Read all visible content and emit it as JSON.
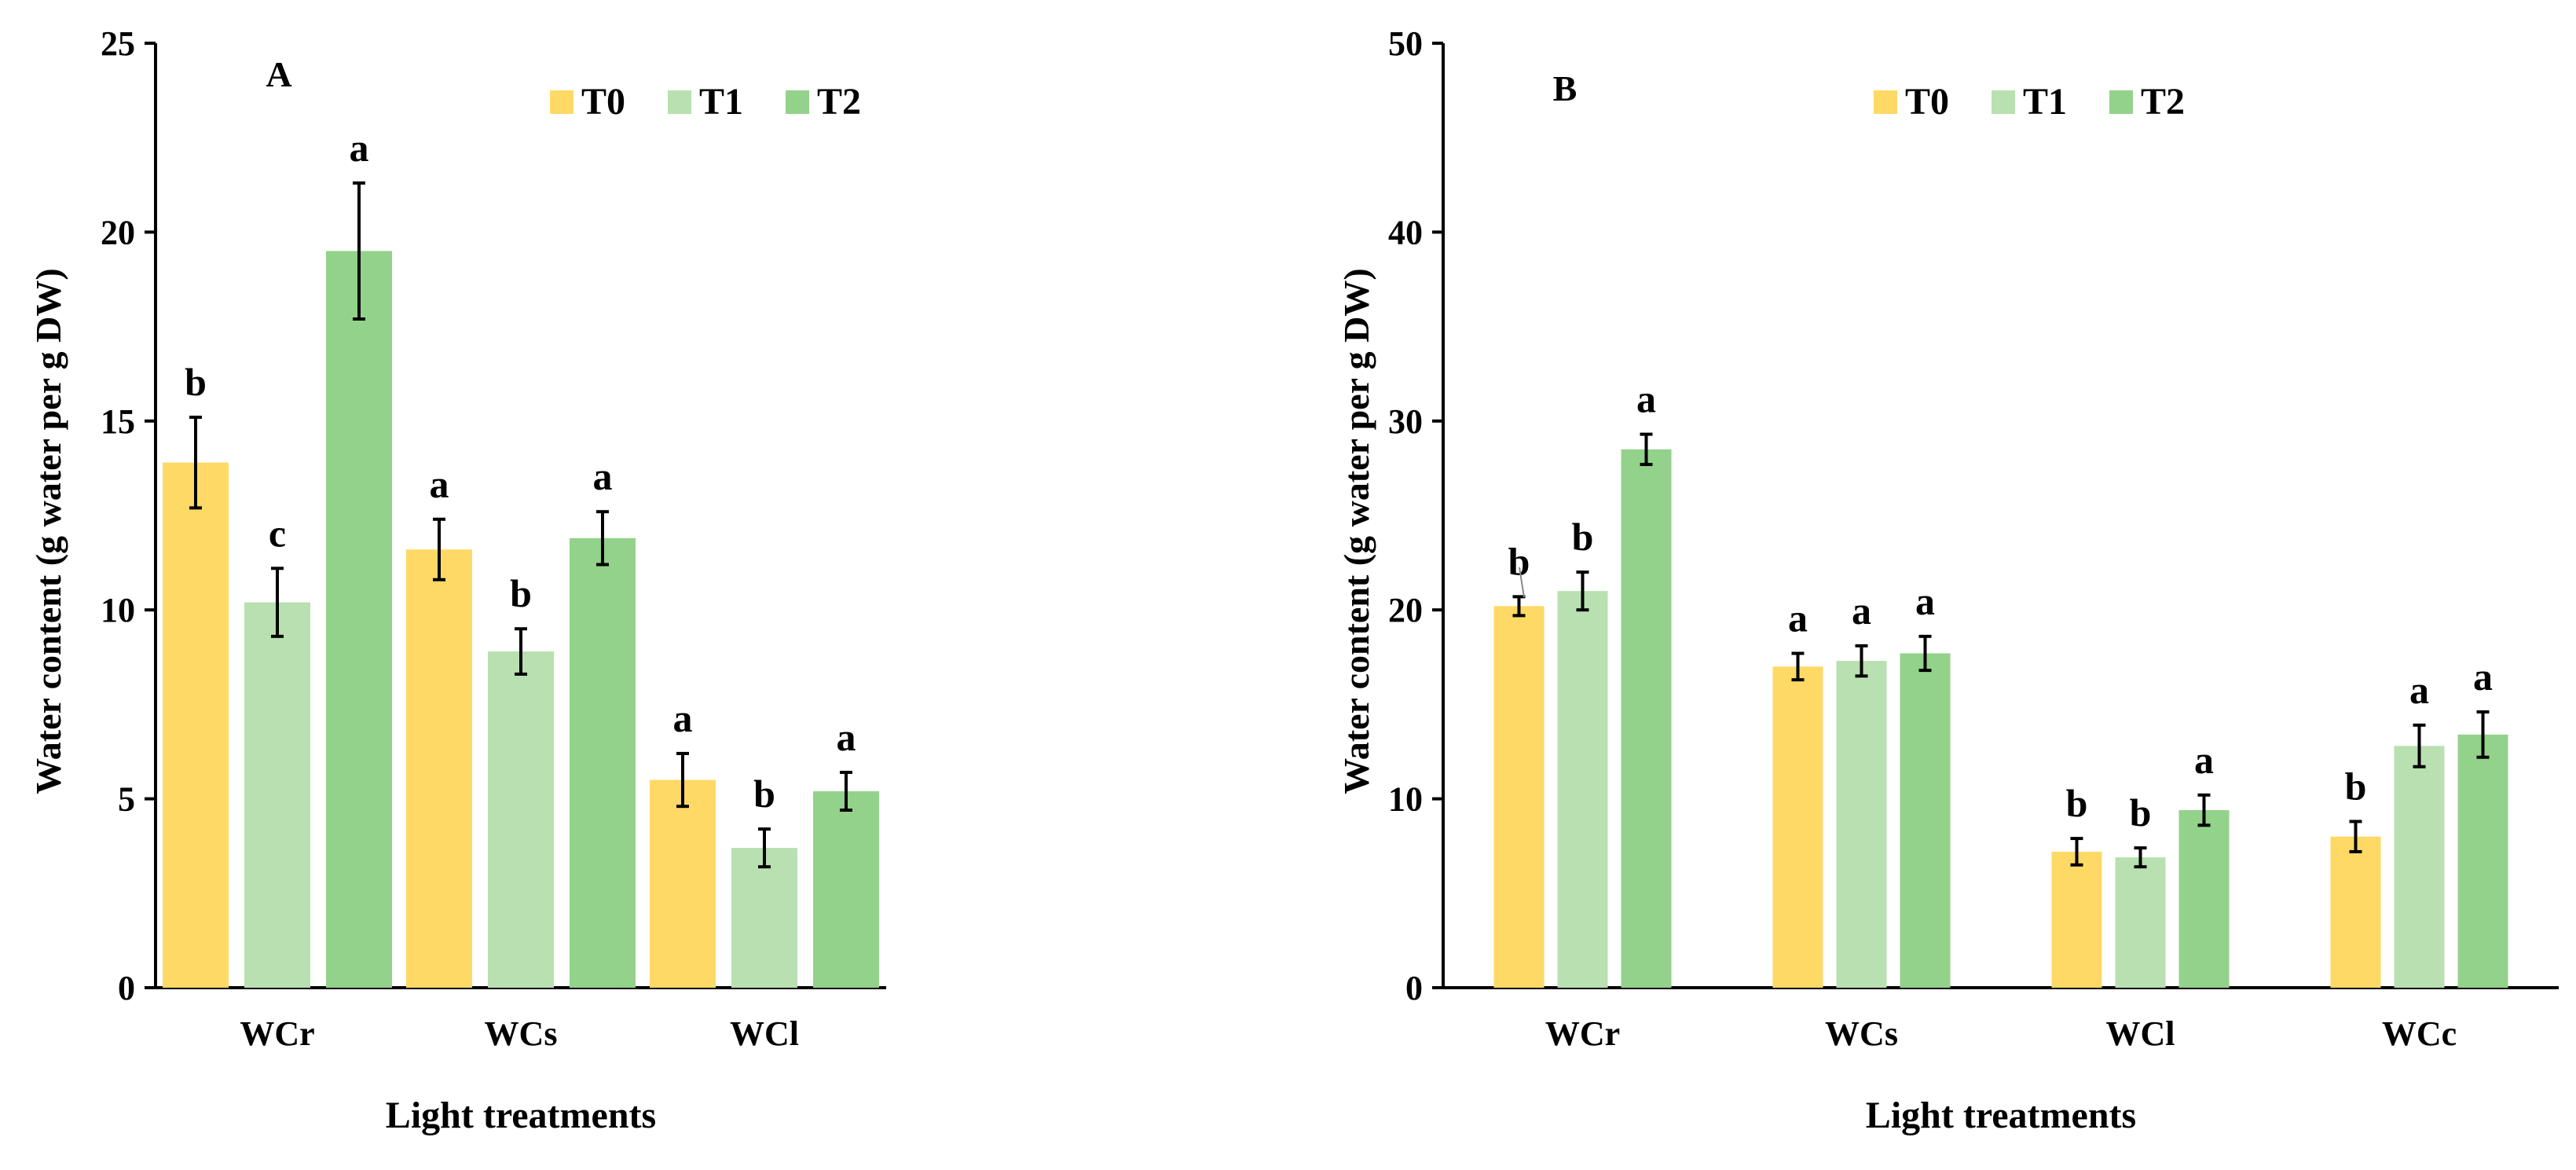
{
  "colors": {
    "T0": "#FFD966",
    "T1": "#B9E0B0",
    "T2": "#93D28A",
    "axis": "#000000",
    "text": "#000000"
  },
  "chart_data": [
    {
      "panel": "A",
      "type": "bar",
      "title": "",
      "panel_label": "A",
      "xlabel": "Light treatments",
      "ylabel": "Water content (g water per g DW)",
      "ylim": [
        0,
        25
      ],
      "yticks": [
        0,
        5,
        10,
        15,
        20,
        25
      ],
      "ytick_labels": [
        "0",
        "5",
        "10",
        "15",
        "20",
        "25"
      ],
      "categories": [
        "WCr",
        "WCs",
        "WCl"
      ],
      "legend": {
        "position": "top-center",
        "entries": [
          "T0",
          "T1",
          "T2"
        ]
      },
      "series": [
        {
          "name": "T0",
          "color_key": "T0",
          "values": [
            13.9,
            11.6,
            5.5
          ],
          "errors": [
            1.2,
            0.8,
            0.7
          ],
          "letters": [
            "b",
            "a",
            "a"
          ]
        },
        {
          "name": "T1",
          "color_key": "T1",
          "values": [
            10.2,
            8.9,
            3.7
          ],
          "errors": [
            0.9,
            0.6,
            0.5
          ],
          "letters": [
            "c",
            "b",
            "b"
          ]
        },
        {
          "name": "T2",
          "color_key": "T2",
          "values": [
            19.5,
            11.9,
            5.2
          ],
          "errors": [
            1.8,
            0.7,
            0.5
          ],
          "letters": [
            "a",
            "a",
            "a"
          ]
        }
      ]
    },
    {
      "panel": "B",
      "type": "bar",
      "title": "",
      "panel_label": "B",
      "xlabel": "Light treatments",
      "ylabel": "Water content (g water per g DW)",
      "ylim": [
        0,
        50
      ],
      "yticks": [
        0,
        10,
        20,
        30,
        40,
        50
      ],
      "ytick_labels": [
        "0",
        "10",
        "20",
        "30",
        "40",
        "50"
      ],
      "categories": [
        "WCr",
        "WCs",
        "WCl",
        "WCc"
      ],
      "legend": {
        "position": "top-center",
        "entries": [
          "T0",
          "T1",
          "T2"
        ]
      },
      "series": [
        {
          "name": "T0",
          "color_key": "T0",
          "values": [
            20.2,
            17.0,
            7.2,
            8.0
          ],
          "errors": [
            0.5,
            0.7,
            0.7,
            0.8
          ],
          "letters": [
            "b",
            "a",
            "b",
            "b"
          ]
        },
        {
          "name": "T1",
          "color_key": "T1",
          "values": [
            21.0,
            17.3,
            6.9,
            12.8
          ],
          "errors": [
            1.0,
            0.8,
            0.5,
            1.1
          ],
          "letters": [
            "b",
            "a",
            "b",
            "a"
          ]
        },
        {
          "name": "T2",
          "color_key": "T2",
          "values": [
            28.5,
            17.7,
            9.4,
            13.4
          ],
          "errors": [
            0.8,
            0.9,
            0.8,
            1.2
          ],
          "letters": [
            "a",
            "a",
            "a",
            "a"
          ]
        }
      ]
    }
  ]
}
